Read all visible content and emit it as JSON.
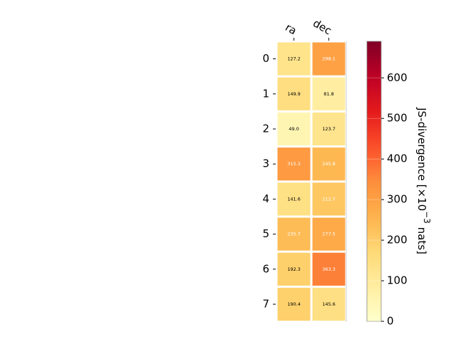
{
  "chart_data": {
    "type": "heatmap",
    "columns": [
      "ra",
      "dec"
    ],
    "rows": [
      "0",
      "1",
      "2",
      "3",
      "4",
      "5",
      "6",
      "7"
    ],
    "values": [
      [
        127.2,
        298.1
      ],
      [
        149.9,
        81.8
      ],
      [
        49.0,
        123.7
      ],
      [
        315.3,
        245.8
      ],
      [
        141.6,
        212.7
      ],
      [
        235.7,
        277.5
      ],
      [
        192.3,
        363.3
      ],
      [
        190.4,
        145.6
      ]
    ],
    "cell_labels": [
      [
        "127.2",
        "298.1"
      ],
      [
        "149.9",
        "81.8"
      ],
      [
        "49.0",
        "123.7"
      ],
      [
        "315.3",
        "245.8"
      ],
      [
        "141.6",
        "212.7"
      ],
      [
        "235.7",
        "277.5"
      ],
      [
        "192.3",
        "363.3"
      ],
      [
        "190.4",
        "145.6"
      ]
    ],
    "colorbar": {
      "label_main": "JS-divergence [×10",
      "label_exponent": "−3",
      "label_units": " nats]",
      "range": [
        0,
        690
      ],
      "ticks": [
        "0",
        "100",
        "200",
        "300",
        "400",
        "500",
        "600"
      ],
      "tick_values": [
        0,
        100,
        200,
        300,
        400,
        500,
        600
      ],
      "colormap": "YlOrRd"
    },
    "colors": {
      "label_light": "#ffffff",
      "label_dark": "#000000",
      "cell_border": "#ffffff"
    }
  }
}
